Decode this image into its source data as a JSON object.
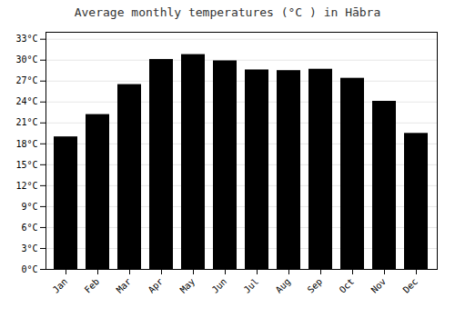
{
  "chart_data": {
    "type": "bar",
    "title": "Average monthly temperatures (°C ) in Hābra",
    "categories": [
      "Jan",
      "Feb",
      "Mar",
      "Apr",
      "May",
      "Jun",
      "Jul",
      "Aug",
      "Sep",
      "Oct",
      "Nov",
      "Dec"
    ],
    "values": [
      19.0,
      22.2,
      26.5,
      30.1,
      30.8,
      29.9,
      28.6,
      28.5,
      28.7,
      27.4,
      24.1,
      19.5
    ],
    "ylim": [
      0,
      34
    ],
    "yticks": [
      {
        "value": 0,
        "label": "0°C"
      },
      {
        "value": 3,
        "label": "3°C"
      },
      {
        "value": 6,
        "label": "6°C"
      },
      {
        "value": 9,
        "label": "9°C"
      },
      {
        "value": 12,
        "label": "12°C"
      },
      {
        "value": 15,
        "label": "15°C"
      },
      {
        "value": 18,
        "label": "18°C"
      },
      {
        "value": 21,
        "label": "21°C"
      },
      {
        "value": 24,
        "label": "24°C"
      },
      {
        "value": 27,
        "label": "27°C"
      },
      {
        "value": 30,
        "label": "30°C"
      },
      {
        "value": 33,
        "label": "33°C"
      }
    ],
    "grid": true
  }
}
